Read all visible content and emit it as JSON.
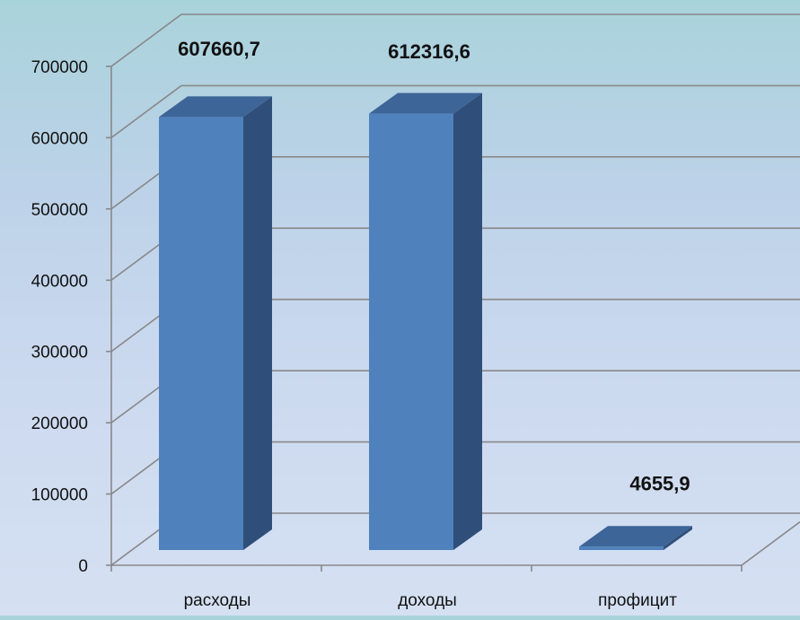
{
  "chart_data": {
    "type": "bar",
    "style": "3d-column",
    "title": "",
    "xlabel": "",
    "ylabel": "",
    "categories": [
      "расходы",
      "доходы",
      "профицит"
    ],
    "values": [
      607660.7,
      612316.6,
      4655.9
    ],
    "data_labels": [
      "607660,7",
      "612316,6",
      "4655,9"
    ],
    "ylim": [
      0,
      700000
    ],
    "y_ticks": [
      0,
      100000,
      200000,
      300000,
      400000,
      500000,
      600000,
      700000
    ],
    "y_tick_labels": [
      "0",
      "100000",
      "200000",
      "300000",
      "400000",
      "500000",
      "600000",
      "700000"
    ],
    "grid": true,
    "legend": "none",
    "colors": {
      "bar_front": "#4f81bd",
      "bar_side": "#2f4f7a",
      "bar_top": "#3d6597",
      "gridline": "#888888",
      "background_top": "#a9d3db",
      "background_bottom": "#d5e0f2"
    }
  }
}
